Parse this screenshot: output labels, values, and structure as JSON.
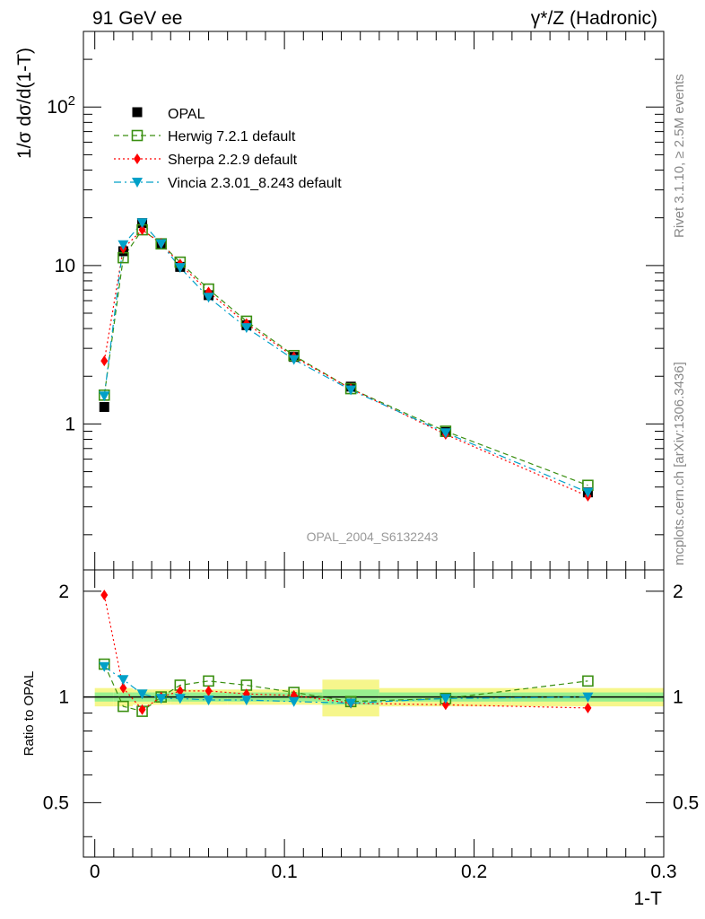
{
  "header": {
    "left": "91 GeV ee",
    "right": "γ*/Z (Hadronic)"
  },
  "side": {
    "rivet": "Rivet 3.1.10, ≥ 2.5M events",
    "mcplots": "mcplots.cern.ch [arXiv:1306.3436]"
  },
  "watermark": "OPAL_2004_S6132243",
  "main_ylabel": "1/σ dσ/d(1-T)",
  "ratio_ylabel": "Ratio to OPAL",
  "xlabel": "1-T",
  "chart_data": [
    {
      "type": "line",
      "panel": "main",
      "yscale": "log",
      "xlim": [
        -0.006,
        0.3
      ],
      "ylim": [
        0.12,
        300
      ],
      "x_ticks": [
        0,
        0.1,
        0.2,
        0.3
      ],
      "y_ticks": [
        {
          "value": 1,
          "label": "1"
        },
        {
          "value": 10,
          "label": "10"
        },
        {
          "value": 100,
          "label": "10²"
        }
      ],
      "x": [
        0.005,
        0.015,
        0.025,
        0.035,
        0.045,
        0.06,
        0.08,
        0.105,
        0.135,
        0.185,
        0.26
      ],
      "data": {
        "name": "OPAL",
        "values": [
          1.28,
          12.3,
          18.5,
          13.8,
          9.8,
          6.5,
          4.2,
          2.65,
          1.72,
          0.89,
          0.37
        ]
      },
      "series": [
        {
          "name": "Herwig 7.2.1 default",
          "color": "#3a8f11",
          "values": [
            1.52,
            11.2,
            16.8,
            13.7,
            10.5,
            7.1,
            4.45,
            2.7,
            1.67,
            0.9,
            0.41
          ]
        },
        {
          "name": "Sherpa 2.2.9 default",
          "color": "#ff0000",
          "values": [
            2.5,
            12.8,
            16.8,
            13.8,
            10.2,
            6.8,
            4.3,
            2.65,
            1.67,
            0.86,
            0.35
          ]
        },
        {
          "name": "Vincia 2.3.01_8.243 default",
          "color": "#00a0c8",
          "values": [
            1.5,
            13.5,
            18.6,
            13.7,
            9.7,
            6.3,
            4.05,
            2.55,
            1.64,
            0.88,
            0.37
          ]
        }
      ]
    },
    {
      "type": "line",
      "panel": "ratio",
      "yscale": "linear",
      "xlim": [
        -0.006,
        0.3
      ],
      "ylim": [
        0.35,
        2.3
      ],
      "y_ticks": [
        {
          "value": 0.5,
          "label": "0.5"
        },
        {
          "value": 1,
          "label": "1"
        },
        {
          "value": 2,
          "label": "2"
        }
      ],
      "x": [
        0.005,
        0.015,
        0.025,
        0.035,
        0.045,
        0.06,
        0.08,
        0.105,
        0.135,
        0.185,
        0.26
      ],
      "band_edges": [
        0,
        0.01,
        0.02,
        0.03,
        0.04,
        0.05,
        0.07,
        0.09,
        0.12,
        0.15,
        0.22,
        0.3
      ],
      "band_stat": [
        0.03,
        0.03,
        0.03,
        0.03,
        0.03,
        0.03,
        0.03,
        0.03,
        0.05,
        0.03,
        0.03
      ],
      "band_total": [
        0.06,
        0.06,
        0.05,
        0.05,
        0.05,
        0.05,
        0.05,
        0.05,
        0.12,
        0.06,
        0.06
      ],
      "series": [
        {
          "name": "Herwig 7.2.1 default",
          "color": "#3a8f11",
          "values": [
            1.24,
            0.94,
            0.91,
            1.0,
            1.08,
            1.11,
            1.08,
            1.03,
            0.97,
            0.99,
            1.11
          ]
        },
        {
          "name": "Sherpa 2.2.9 default",
          "color": "#ff0000",
          "values": [
            1.95,
            1.06,
            0.92,
            1.0,
            1.04,
            1.04,
            1.02,
            1.01,
            0.96,
            0.95,
            0.93
          ]
        },
        {
          "name": "Vincia 2.3.01_8.243 default",
          "color": "#00a0c8",
          "values": [
            1.22,
            1.12,
            1.02,
            0.99,
            0.99,
            0.98,
            0.98,
            0.97,
            0.96,
            0.99,
            1.0
          ]
        }
      ]
    }
  ]
}
